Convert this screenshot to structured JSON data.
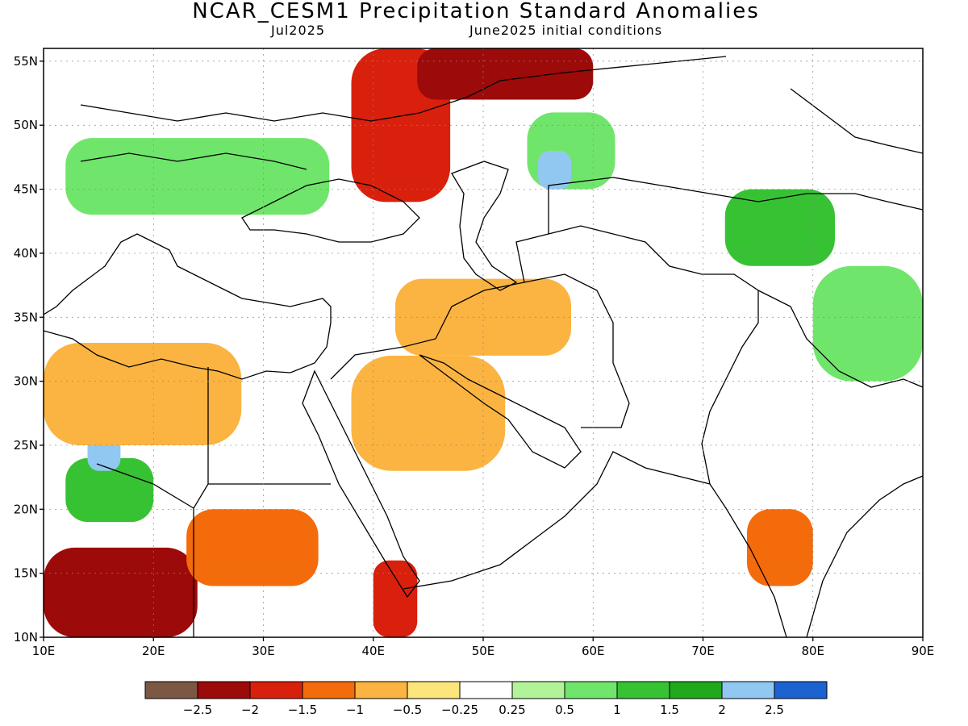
{
  "title": "NCAR_CESM1 Precipitation Standard Anomalies",
  "valid_month": "Jul2025",
  "init_label": "June2025 initial conditions",
  "map": {
    "lon_range": [
      10,
      90
    ],
    "lat_range": [
      10,
      56
    ],
    "lat_ticks": [
      {
        "v": 55,
        "label": "55N"
      },
      {
        "v": 50,
        "label": "50N"
      },
      {
        "v": 45,
        "label": "45N"
      },
      {
        "v": 40,
        "label": "40N"
      },
      {
        "v": 35,
        "label": "35N"
      },
      {
        "v": 30,
        "label": "30N"
      },
      {
        "v": 25,
        "label": "25N"
      },
      {
        "v": 20,
        "label": "20N"
      },
      {
        "v": 15,
        "label": "15N"
      },
      {
        "v": 10,
        "label": "10N"
      }
    ],
    "lon_ticks": [
      {
        "v": 10,
        "label": "10E"
      },
      {
        "v": 20,
        "label": "20E"
      },
      {
        "v": 30,
        "label": "30E"
      },
      {
        "v": 40,
        "label": "40E"
      },
      {
        "v": 50,
        "label": "50E"
      },
      {
        "v": 60,
        "label": "60E"
      },
      {
        "v": 70,
        "label": "70E"
      },
      {
        "v": 80,
        "label": "80E"
      },
      {
        "v": 90,
        "label": "90E"
      }
    ],
    "anomaly_regions": [
      {
        "lon": [
          10,
          24
        ],
        "lat": [
          10,
          17
        ],
        "level": -2,
        "name": "sahel-dry"
      },
      {
        "lon": [
          12,
          20
        ],
        "lat": [
          19,
          24
        ],
        "level": 1.5,
        "name": "chad-wet"
      },
      {
        "lon": [
          14,
          17
        ],
        "lat": [
          23,
          26
        ],
        "level": 2.5,
        "name": "tibesti-very-wet"
      },
      {
        "lon": [
          23,
          35
        ],
        "lat": [
          14,
          20
        ],
        "level": -1,
        "name": "sudan-dry"
      },
      {
        "lon": [
          40,
          44
        ],
        "lat": [
          10,
          16
        ],
        "level": -1.5,
        "name": "ethiopia-dry"
      },
      {
        "lon": [
          38,
          47
        ],
        "lat": [
          44,
          56
        ],
        "level": -1.5,
        "name": "russia-south-dry"
      },
      {
        "lon": [
          44,
          60
        ],
        "lat": [
          52,
          56
        ],
        "level": -2,
        "name": "volga-dry"
      },
      {
        "lon": [
          12,
          36
        ],
        "lat": [
          43,
          49
        ],
        "level": 1,
        "name": "balkans-wet"
      },
      {
        "lon": [
          54,
          62
        ],
        "lat": [
          45,
          51
        ],
        "level": 1,
        "name": "kazakh-wet"
      },
      {
        "lon": [
          55,
          58
        ],
        "lat": [
          45,
          48
        ],
        "level": 2.5,
        "name": "aral-very-wet"
      },
      {
        "lon": [
          72,
          82
        ],
        "lat": [
          39,
          45
        ],
        "level": 1.5,
        "name": "tianshan-wet"
      },
      {
        "lon": [
          80,
          90
        ],
        "lat": [
          30,
          39
        ],
        "level": 1,
        "name": "tibet-wet"
      },
      {
        "lon": [
          74,
          80
        ],
        "lat": [
          14,
          20
        ],
        "level": -1,
        "name": "deccan-dry"
      },
      {
        "lon": [
          42,
          58
        ],
        "lat": [
          32,
          38
        ],
        "level": -0.5,
        "name": "iran-iraq-dry"
      },
      {
        "lon": [
          38,
          52
        ],
        "lat": [
          23,
          32
        ],
        "level": -0.5,
        "name": "arabia-north-dry"
      },
      {
        "lon": [
          10,
          28
        ],
        "lat": [
          25,
          33
        ],
        "level": -0.5,
        "name": "libya-dry"
      }
    ]
  },
  "colorbar": {
    "colors": [
      "#7b5744",
      "#9c0a0a",
      "#d8200d",
      "#f46b0c",
      "#fbb441",
      "#fce57a",
      "#ffffff",
      "#b2f39a",
      "#70e56b",
      "#37c234",
      "#21a81d",
      "#91c8f2",
      "#1c62d0"
    ],
    "labels": [
      "−2.5",
      "−2",
      "−1.5",
      "−1",
      "−0.5",
      "−0.25",
      "0.25",
      "0.5",
      "1",
      "1.5",
      "2",
      "2.5"
    ]
  }
}
